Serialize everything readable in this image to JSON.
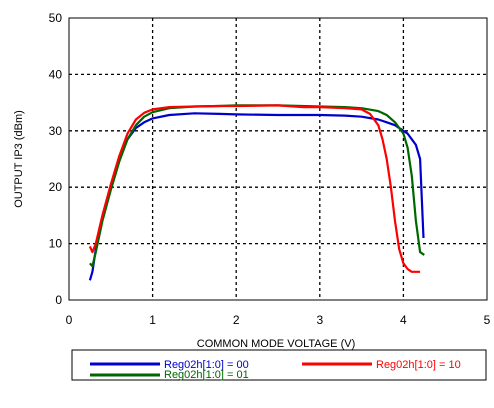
{
  "chart_data": {
    "type": "line",
    "title": "",
    "xlabel": "COMMON MODE VOLTAGE (V)",
    "ylabel": "OUTPUT IP3 (dBm)",
    "xlim": [
      0,
      5
    ],
    "ylim": [
      0,
      50
    ],
    "xticks": [
      "0",
      "1",
      "2",
      "3",
      "4",
      "5"
    ],
    "yticks": [
      "0",
      "10",
      "20",
      "30",
      "40",
      "50"
    ],
    "grid": true,
    "legend_position": "bottom",
    "series": [
      {
        "name": "Reg02h[1:0] = 00",
        "color": "#0000cc",
        "x": [
          0.25,
          0.28,
          0.32,
          0.4,
          0.5,
          0.6,
          0.7,
          0.8,
          0.9,
          1.0,
          1.2,
          1.5,
          1.8,
          2.0,
          2.5,
          3.0,
          3.3,
          3.5,
          3.7,
          3.8,
          3.9,
          4.0,
          4.05,
          4.1,
          4.15,
          4.2,
          4.22,
          4.24
        ],
        "y": [
          3.5,
          5,
          9,
          14.5,
          20,
          25,
          28.5,
          30.5,
          31.5,
          32.2,
          32.8,
          33.1,
          33.0,
          32.9,
          32.8,
          32.8,
          32.7,
          32.5,
          32.0,
          31.5,
          31.0,
          30.0,
          29.5,
          28.5,
          27.5,
          25.0,
          18.0,
          11.0
        ]
      },
      {
        "name": "Reg02h[1:0] = 01",
        "color": "#006600",
        "x": [
          0.25,
          0.28,
          0.32,
          0.4,
          0.5,
          0.6,
          0.7,
          0.8,
          0.9,
          1.0,
          1.2,
          1.5,
          1.8,
          2.0,
          2.5,
          3.0,
          3.3,
          3.5,
          3.7,
          3.8,
          3.9,
          4.0,
          4.05,
          4.1,
          4.15,
          4.2,
          4.25
        ],
        "y": [
          6.5,
          6,
          8.5,
          14,
          19.5,
          24.5,
          28.5,
          31.0,
          32.5,
          33.3,
          34.0,
          34.3,
          34.4,
          34.5,
          34.5,
          34.3,
          34.2,
          34.0,
          33.5,
          32.8,
          31.5,
          29.5,
          27.0,
          22.0,
          14.0,
          8.5,
          8.0
        ]
      },
      {
        "name": "Reg02h[1:0] = 10",
        "color": "#ff0000",
        "x": [
          0.25,
          0.28,
          0.32,
          0.4,
          0.5,
          0.6,
          0.7,
          0.8,
          0.9,
          1.0,
          1.2,
          1.5,
          1.8,
          2.0,
          2.5,
          2.8,
          3.0,
          3.3,
          3.5,
          3.6,
          3.7,
          3.75,
          3.8,
          3.85,
          3.9,
          3.95,
          4.0,
          4.05,
          4.1,
          4.15,
          4.2
        ],
        "y": [
          9.5,
          8.5,
          10,
          15,
          20.5,
          25.5,
          29.5,
          32.0,
          33.2,
          33.8,
          34.2,
          34.3,
          34.4,
          34.4,
          34.5,
          34.2,
          34.2,
          34.0,
          33.8,
          33.0,
          31.0,
          28.5,
          25.0,
          20.0,
          14.0,
          9.0,
          6.5,
          5.5,
          5.0,
          5.0,
          5.0
        ]
      }
    ]
  }
}
